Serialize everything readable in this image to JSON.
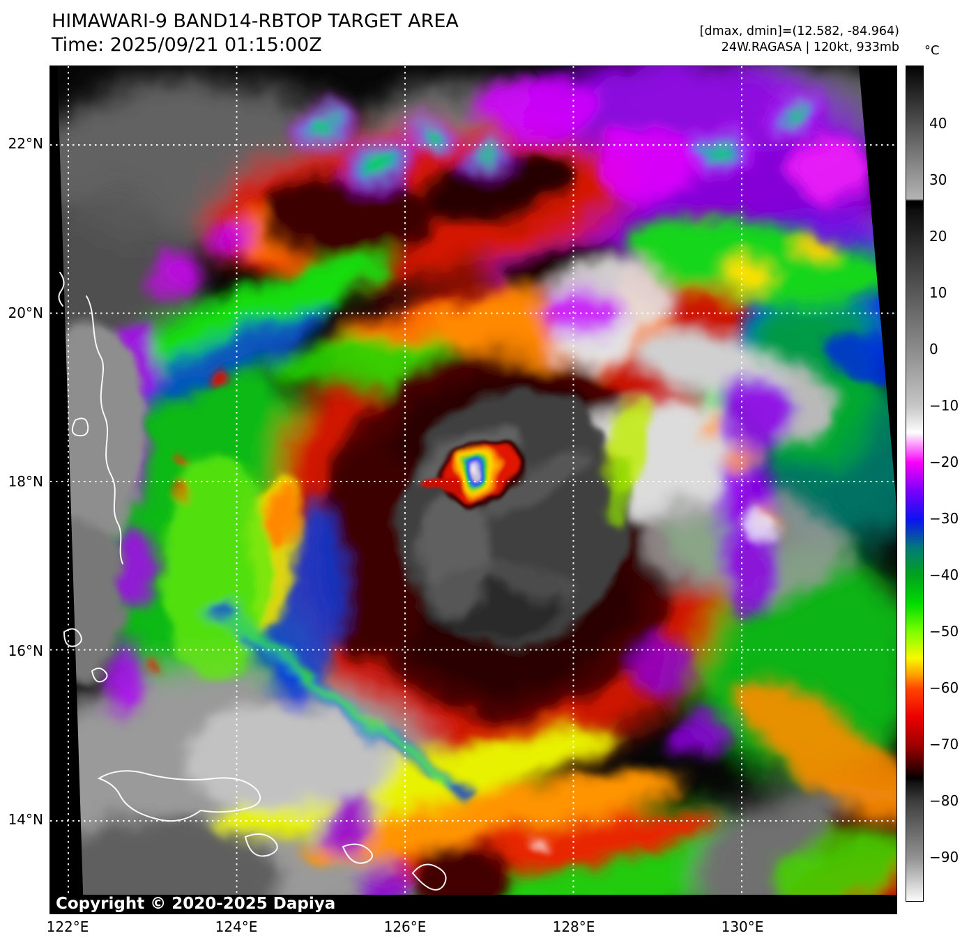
{
  "figure": {
    "title_line1": "HIMAWARI-9 BAND14-RBTOP TARGET AREA",
    "title_line2": "Time: 2025/09/21 01:15:00Z",
    "header_line1": "[dmax, dmin]=(12.582, -84.964)",
    "header_line2": "24W.RAGASA | 120kt, 933mb"
  },
  "storm": {
    "id": "24W",
    "name": "RAGASA",
    "intensity": "120kt",
    "pressure": "933mb",
    "dmax": "12.582",
    "dmin": "-84.964"
  },
  "map": {
    "lat_ticks": [
      "22°N",
      "20°N",
      "18°N",
      "16°N",
      "14°N"
    ],
    "lon_ticks": [
      "122°E",
      "124°E",
      "126°E",
      "128°E",
      "130°E"
    ],
    "copyright": "Copyright © 2020-2025 Dapiya"
  },
  "colorbar": {
    "unit": "°C",
    "ticks": [
      "40",
      "30",
      "20",
      "10",
      "0",
      "−10",
      "−20",
      "−30",
      "−40",
      "−50",
      "−60",
      "−70",
      "−80",
      "−90"
    ],
    "key_colors": {
      "magenta": "#f800f8",
      "violet": "#7c00fa",
      "blue": "#0b12f2",
      "teal": "#037a78",
      "green": "#00dc00",
      "yellow": "#f8f800",
      "orange": "#ffa000",
      "red": "#ec0000",
      "dark_red": "#400000"
    }
  }
}
